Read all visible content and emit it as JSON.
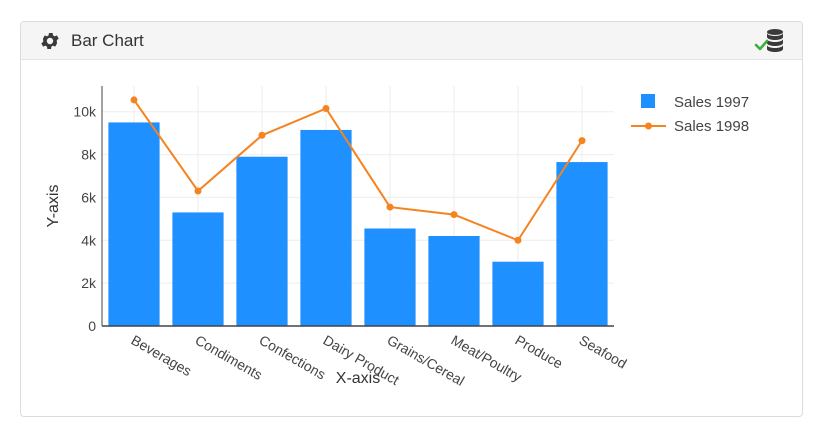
{
  "panel": {
    "title": "Bar Chart",
    "header_icon": "gear-icon",
    "action_icon": "database-check-icon"
  },
  "chart_data": {
    "type": "bar",
    "title": "",
    "xlabel": "X-axis",
    "ylabel": "Y-axis",
    "categories": [
      "Beverages",
      "Condiments",
      "Confections",
      "Dairy Products",
      "Grains/Cereals",
      "Meat/Poultry",
      "Produce",
      "Seafood"
    ],
    "tick_labels_visible": [
      "Beverages",
      "Condiments",
      "Confections",
      "Dairy Product",
      "Grains/Cereal",
      "Meat/Poultry",
      "Produce",
      "Seafood"
    ],
    "series": [
      {
        "name": "Sales 1997",
        "kind": "bar",
        "color": "#1e90ff",
        "values": [
          9500,
          5300,
          7900,
          9150,
          4550,
          4200,
          3000,
          7650
        ]
      },
      {
        "name": "Sales 1998",
        "kind": "line",
        "color": "#f5831f",
        "values": [
          10550,
          6300,
          8900,
          10150,
          5550,
          5200,
          4000,
          8650
        ]
      }
    ],
    "ylim": [
      0,
      11200
    ],
    "yticks": [
      0,
      2000,
      4000,
      6000,
      8000,
      10000
    ],
    "ytick_labels": [
      "0",
      "2k",
      "4k",
      "6k",
      "8k",
      "10k"
    ],
    "grid": true,
    "legend": "top-right"
  }
}
